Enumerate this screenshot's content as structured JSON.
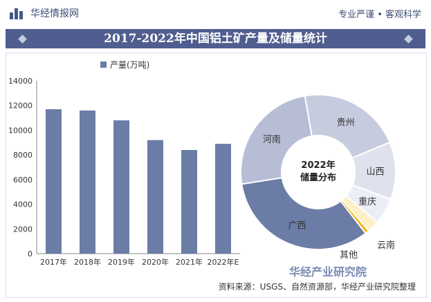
{
  "header": {
    "brand": "华经情报网",
    "tagline": "专业严谨 • 客观科学"
  },
  "title": "2017-2022年中国铝土矿产量及储量统计",
  "footer": {
    "source": "资料来源：USGS、自然资源部，华经产业研究院整理",
    "brand": "华经产业研究院"
  },
  "colors": {
    "bar": "#6b7ca6",
    "title_bg": "#4f5d8f"
  },
  "chart_data": [
    {
      "type": "bar",
      "categories": [
        "2017年",
        "2018年",
        "2019年",
        "2020年",
        "2021年",
        "2022年E"
      ],
      "series": [
        {
          "name": "产量(万吨)",
          "values": [
            11700,
            11600,
            10800,
            9200,
            8400,
            8900
          ]
        }
      ],
      "ylim": [
        0,
        14000
      ],
      "yticks": [
        "0",
        "2000",
        "4000",
        "6000",
        "8000",
        "10000",
        "12000",
        "14000"
      ],
      "legend": "top"
    },
    {
      "type": "pie",
      "center_label": [
        "2022年",
        "储量分布"
      ],
      "slices": [
        {
          "label": "贵州",
          "value": 21.5,
          "color": "#c6cbde"
        },
        {
          "label": "山西",
          "value": 12.0,
          "color": "#dfe2ec"
        },
        {
          "label": "重庆",
          "value": 5.5,
          "color": "#eceef5"
        },
        {
          "label": "云南",
          "value": 2.5,
          "color": "#fdefc7"
        },
        {
          "label": "其他",
          "value": 0.8,
          "color": "#f5b400"
        },
        {
          "label": "广西",
          "value": 33.0,
          "color": "#6b7ca6"
        },
        {
          "label": "河南",
          "value": 24.7,
          "color": "#b6bdd5"
        }
      ]
    }
  ]
}
